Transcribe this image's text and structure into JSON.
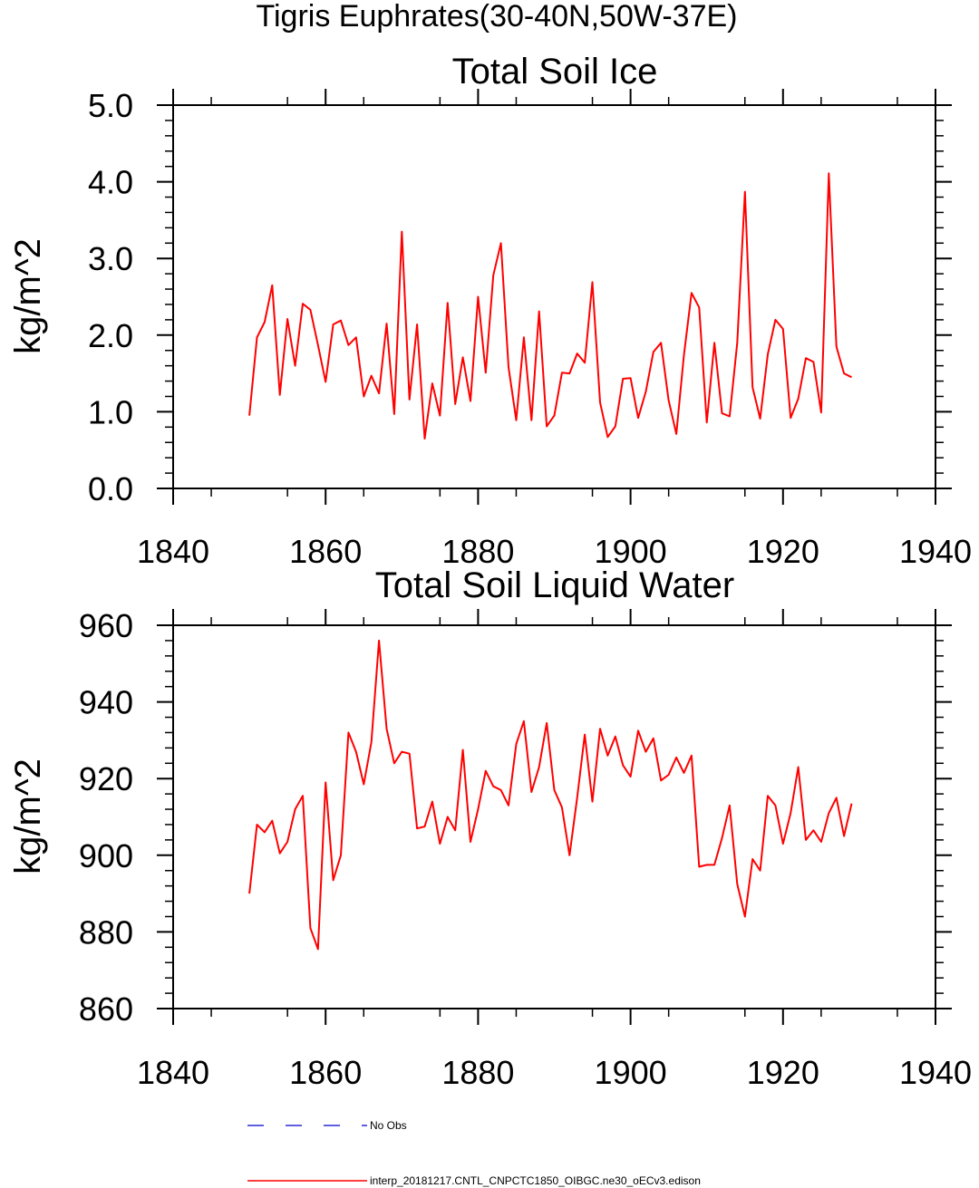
{
  "figure_title": "Tigris Euphrates(30-40N,50W-37E)",
  "chart_data": [
    {
      "type": "line",
      "title": "Total Soil Ice",
      "xlabel": "",
      "ylabel": "kg/m^2",
      "xlim": [
        1840,
        1940
      ],
      "ylim": [
        0,
        5
      ],
      "xticks": [
        1840,
        1860,
        1880,
        1900,
        1920,
        1940
      ],
      "xtick_labels": [
        "1840",
        "1860",
        "1880",
        "1900",
        "1920",
        "1940"
      ],
      "yticks": [
        0,
        1,
        2,
        3,
        4,
        5
      ],
      "ytick_labels": [
        "0.0",
        "1.0",
        "2.0",
        "3.0",
        "4.0",
        "5.0"
      ],
      "series": [
        {
          "name": "interp_20181217.CNTL_CNPCTC1850_OIBGC.ne30_oECv3.edison",
          "color": "#ff0000",
          "x_start": 1850,
          "x_step": 1,
          "values": [
            0.95,
            1.97,
            2.17,
            2.65,
            1.22,
            2.21,
            1.6,
            2.41,
            2.33,
            1.87,
            1.39,
            2.14,
            2.19,
            1.87,
            1.97,
            1.2,
            1.47,
            1.24,
            2.15,
            0.97,
            3.35,
            1.16,
            2.14,
            0.65,
            1.37,
            0.95,
            2.42,
            1.1,
            1.71,
            1.14,
            2.5,
            1.51,
            2.78,
            3.2,
            1.58,
            0.89,
            1.97,
            0.89,
            2.31,
            0.81,
            0.95,
            1.51,
            1.5,
            1.76,
            1.64,
            2.69,
            1.12,
            0.67,
            0.81,
            1.43,
            1.44,
            0.92,
            1.26,
            1.78,
            1.9,
            1.15,
            0.71,
            1.74,
            2.55,
            2.36,
            0.86,
            1.9,
            0.98,
            0.94,
            1.9,
            3.87,
            1.32,
            0.91,
            1.75,
            2.2,
            2.08,
            0.92,
            1.17,
            1.7,
            1.65,
            0.99,
            4.11,
            1.85,
            1.5,
            1.45
          ]
        }
      ]
    },
    {
      "type": "line",
      "title": "Total Soil Liquid Water",
      "xlabel": "",
      "ylabel": "kg/m^2",
      "xlim": [
        1840,
        1940
      ],
      "ylim": [
        860,
        960
      ],
      "xticks": [
        1840,
        1860,
        1880,
        1900,
        1920,
        1940
      ],
      "xtick_labels": [
        "1840",
        "1860",
        "1880",
        "1900",
        "1920",
        "1940"
      ],
      "yticks": [
        860,
        880,
        900,
        920,
        940,
        960
      ],
      "ytick_labels": [
        "860",
        "880",
        "900",
        "920",
        "940",
        "960"
      ],
      "series": [
        {
          "name": "interp_20181217.CNTL_CNPCTC1850_OIBGC.ne30_oECv3.edison",
          "color": "#ff0000",
          "x_start": 1850,
          "x_step": 1,
          "values": [
            890,
            908,
            906,
            909,
            900.5,
            903.5,
            912,
            915.5,
            881,
            875.5,
            919,
            893.5,
            900,
            932,
            927,
            918.5,
            929.5,
            956,
            933,
            924,
            927,
            926.5,
            907,
            907.5,
            914,
            903,
            910,
            906.5,
            927.5,
            903.5,
            912,
            922,
            918,
            917,
            913,
            929,
            935,
            916.5,
            923,
            934.5,
            917,
            912.5,
            900,
            915,
            931.5,
            914,
            933,
            926,
            931,
            923.5,
            920.5,
            932.5,
            927,
            930.5,
            919.5,
            921,
            925.5,
            921.5,
            926,
            897,
            897.5,
            897.5,
            904.5,
            913,
            892.5,
            884,
            899,
            896,
            915.5,
            913,
            903,
            911,
            923,
            904,
            906.5,
            903.5,
            911,
            915,
            905,
            913.5
          ]
        }
      ]
    }
  ],
  "legend": {
    "items": [
      {
        "label": "No Obs",
        "color": "#0000cc",
        "style": "dashed"
      },
      {
        "label": "interp_20181217.CNTL_CNPCTC1850_OIBGC.ne30_oECv3.edison",
        "color": "#ff0000",
        "style": "solid"
      }
    ]
  }
}
